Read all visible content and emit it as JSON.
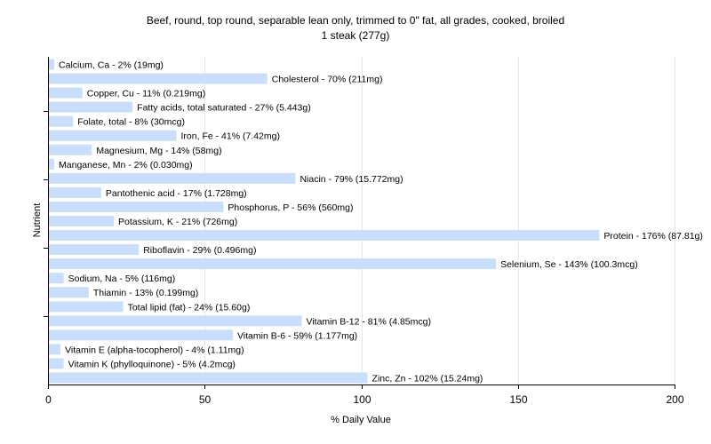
{
  "chart_data": {
    "type": "bar",
    "orientation": "horizontal",
    "title": "Beef, round, top round, separable lean only, trimmed to 0\" fat, all grades, cooked, broiled",
    "subtitle": "1 steak (277g)",
    "xlabel": "% Daily Value",
    "ylabel": "Nutrient",
    "xlim": [
      0,
      200
    ],
    "xticks": [
      0,
      50,
      100,
      150,
      200
    ],
    "grid": true,
    "bar_color": "#c8defa",
    "categories": [
      "Calcium, Ca",
      "Cholesterol",
      "Copper, Cu",
      "Fatty acids, total saturated",
      "Folate, total",
      "Iron, Fe",
      "Magnesium, Mg",
      "Manganese, Mn",
      "Niacin",
      "Pantothenic acid",
      "Phosphorus, P",
      "Potassium, K",
      "Protein",
      "Riboflavin",
      "Selenium, Se",
      "Sodium, Na",
      "Thiamin",
      "Total lipid (fat)",
      "Vitamin B-12",
      "Vitamin B-6",
      "Vitamin E (alpha-tocopherol)",
      "Vitamin K (phylloquinone)",
      "Zinc, Zn"
    ],
    "values": [
      2,
      70,
      11,
      27,
      8,
      41,
      14,
      2,
      79,
      17,
      56,
      21,
      176,
      29,
      143,
      5,
      13,
      24,
      81,
      59,
      4,
      5,
      102
    ],
    "labels": [
      "Calcium, Ca - 2% (19mg)",
      "Cholesterol - 70% (211mg)",
      "Copper, Cu - 11% (0.219mg)",
      "Fatty acids, total saturated - 27% (5.443g)",
      "Folate, total - 8% (30mcg)",
      "Iron, Fe - 41% (7.42mg)",
      "Magnesium, Mg - 14% (58mg)",
      "Manganese, Mn - 2% (0.030mg)",
      "Niacin - 79% (15.772mg)",
      "Pantothenic acid - 17% (1.728mg)",
      "Phosphorus, P - 56% (560mg)",
      "Potassium, K - 21% (726mg)",
      "Protein - 176% (87.81g)",
      "Riboflavin - 29% (0.496mg)",
      "Selenium, Se - 143% (100.3mcg)",
      "Sodium, Na - 5% (116mg)",
      "Thiamin - 13% (0.199mg)",
      "Total lipid (fat) - 24% (15.60g)",
      "Vitamin B-12 - 81% (4.85mcg)",
      "Vitamin B-6 - 59% (1.177mg)",
      "Vitamin E (alpha-tocopherol) - 4% (1.11mg)",
      "Vitamin K (phylloquinone) - 5% (4.2mcg)",
      "Zinc, Zn - 102% (15.24mg)"
    ]
  }
}
